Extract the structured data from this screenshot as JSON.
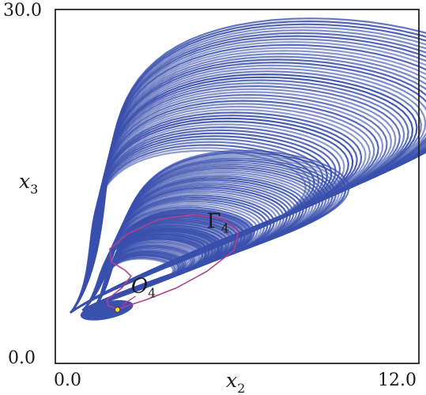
{
  "chart_data": {
    "type": "scatter",
    "xlabel": "x",
    "xlabel_sub": "2",
    "ylabel": "x",
    "ylabel_sub": "3",
    "xlim": [
      0.0,
      12.0
    ],
    "ylim": [
      0.0,
      30.0
    ],
    "x_ticks": [
      "0.0",
      "12.0"
    ],
    "y_ticks": [
      "0.0",
      "30.0"
    ],
    "grid": false,
    "colors": {
      "attractor": "#3a50ad",
      "orbit": "#b0408a",
      "equilibrium": "#f0e010",
      "frame": "#222222"
    },
    "annotations": [
      {
        "text": "Γ",
        "sub": "4",
        "x": 5.0,
        "y": 11.5
      },
      {
        "text": "O",
        "sub": "4",
        "x": 2.5,
        "y": 6.0
      }
    ],
    "equilibrium_point": {
      "x": 2.05,
      "y": 4.55
    },
    "bands": [
      {
        "name": "outer-band",
        "x0": 0.5,
        "y0": 4.3,
        "xmin": 0.5,
        "xmax": 11.0,
        "ymax": 28.7,
        "thick": 0.45
      },
      {
        "name": "middle-band",
        "x0": 0.9,
        "y0": 4.5,
        "xmin": 0.9,
        "xmax": 7.9,
        "ymax": 17.6,
        "thick": 0.55
      },
      {
        "name": "inner-band",
        "x0": 1.25,
        "y0": 4.7,
        "xmin": 1.25,
        "xmax": 5.4,
        "ymax": 12.8,
        "thick": 0.5
      }
    ],
    "orbit": [
      [
        2.05,
        4.6
      ],
      [
        2.4,
        4.9
      ],
      [
        3.0,
        5.4
      ],
      [
        4.0,
        6.4
      ],
      [
        5.0,
        7.8
      ],
      [
        5.9,
        9.6
      ],
      [
        6.05,
        11.2
      ],
      [
        5.5,
        12.3
      ],
      [
        4.5,
        12.6
      ],
      [
        3.4,
        12.2
      ],
      [
        2.4,
        11.0
      ],
      [
        1.8,
        9.7
      ],
      [
        1.85,
        8.6
      ],
      [
        2.3,
        7.9
      ],
      [
        2.5,
        7.4
      ],
      [
        2.2,
        6.4
      ],
      [
        1.7,
        5.4
      ],
      [
        1.75,
        4.9
      ],
      [
        2.05,
        4.6
      ]
    ]
  }
}
